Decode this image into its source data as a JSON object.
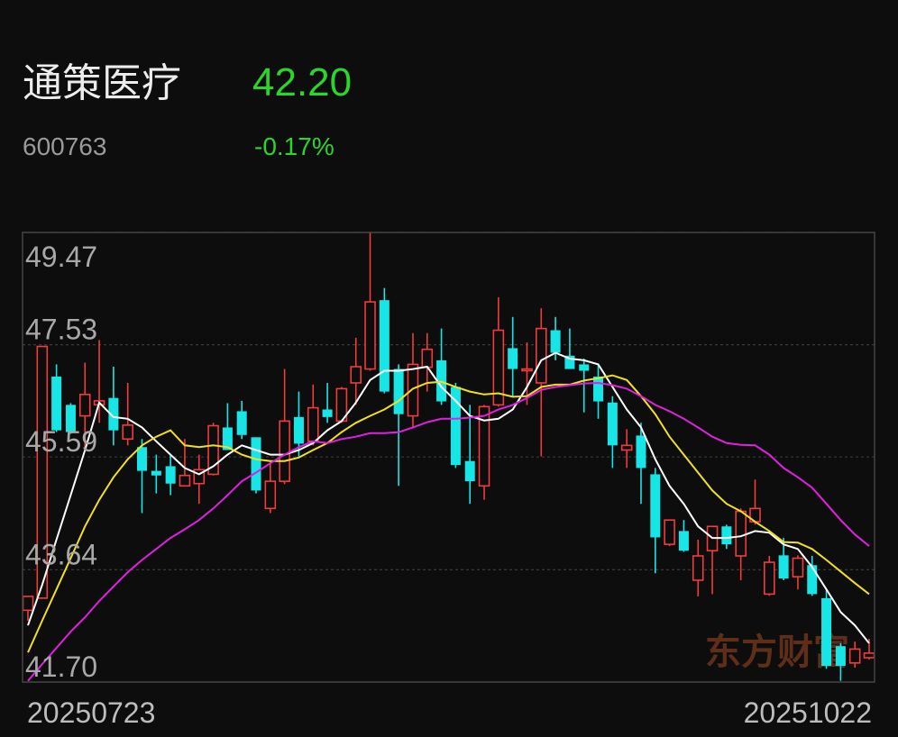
{
  "header": {
    "name": "通策医疗",
    "price": "42.20",
    "code": "600763",
    "change": "-0.17%"
  },
  "chart_data": {
    "type": "candlestick",
    "categories": [
      "20250723",
      null,
      null,
      null,
      null,
      null,
      null,
      null,
      null,
      null,
      null,
      null,
      null,
      null,
      null,
      null,
      null,
      null,
      null,
      null,
      null,
      null,
      null,
      null,
      null,
      null,
      null,
      null,
      null,
      null,
      null,
      null,
      null,
      null,
      null,
      null,
      null,
      null,
      null,
      null,
      null,
      null,
      null,
      null,
      null,
      null,
      null,
      null,
      null,
      null,
      null,
      null,
      null,
      null,
      null,
      null,
      null,
      null,
      null,
      "20251022"
    ],
    "open": [
      42.94,
      43.15,
      46.98,
      46.49,
      46.3,
      46.49,
      46.61,
      45.9,
      45.76,
      45.35,
      45.43,
      45.09,
      45.13,
      45.29,
      46.1,
      46.38,
      45.93,
      44.7,
      45.17,
      46.28,
      45.86,
      46.41,
      46.21,
      46.87,
      47.11,
      48.3,
      47.11,
      46.3,
      47.14,
      47.26,
      46.8,
      45.52,
      45.09,
      46.49,
      47.47,
      47.08,
      46.87,
      47.78,
      47.34,
      47.19,
      46.98,
      46.53,
      45.71,
      45.96,
      45.29,
      44.08,
      44.31,
      43.46,
      43.97,
      44.39,
      43.88,
      44.47,
      43.22,
      43.89,
      43.52,
      43.72,
      43.15,
      42.32,
      42.03,
      42.12
    ],
    "high": [
      43.18,
      47.5,
      47.19,
      46.52,
      47.22,
      47.61,
      47.15,
      46.87,
      45.9,
      45.63,
      45.63,
      45.9,
      45.63,
      46.18,
      46.52,
      46.56,
      45.93,
      45.52,
      47.11,
      46.72,
      46.84,
      46.87,
      46.8,
      47.65,
      49.47,
      48.51,
      47.19,
      47.73,
      47.73,
      47.81,
      46.87,
      46.49,
      46.49,
      48.35,
      48.01,
      47.57,
      48.16,
      48.01,
      47.81,
      47.29,
      47.19,
      46.64,
      46.07,
      46.18,
      45.4,
      44.5,
      44.5,
      44.16,
      44.39,
      44.42,
      44.7,
      45.2,
      43.88,
      44.19,
      43.89,
      43.88,
      43.3,
      42.37,
      42.4,
      42.45
    ],
    "low": [
      42.76,
      43.15,
      46.02,
      45.99,
      45.74,
      46.18,
      45.79,
      45.79,
      44.62,
      44.96,
      44.93,
      45.09,
      44.78,
      45.27,
      45.71,
      45.9,
      44.96,
      44.62,
      45.12,
      45.6,
      45.79,
      46.18,
      46.18,
      46.49,
      47.08,
      46.69,
      45.09,
      46.1,
      46.72,
      46.49,
      45.4,
      44.78,
      44.85,
      46.46,
      46.64,
      46.49,
      45.6,
      47.26,
      47.11,
      46.36,
      46.25,
      45.4,
      45.4,
      44.78,
      43.58,
      44.05,
      43.95,
      43.18,
      43.22,
      44.0,
      43.46,
      44.42,
      43.19,
      43.46,
      43.3,
      43.19,
      41.93,
      41.72,
      41.95,
      42.09
    ],
    "close": [
      43.18,
      47.5,
      46.05,
      46.02,
      46.67,
      46.56,
      46.05,
      46.14,
      45.35,
      45.27,
      45.13,
      45.27,
      45.37,
      46.13,
      45.71,
      45.97,
      45.01,
      45.17,
      46.21,
      45.82,
      46.44,
      46.28,
      46.77,
      47.15,
      48.27,
      46.72,
      46.33,
      47.19,
      47.45,
      46.55,
      45.45,
      45.17,
      46.46,
      47.78,
      47.11,
      47.11,
      47.81,
      47.39,
      47.11,
      47.08,
      46.55,
      45.79,
      45.79,
      45.4,
      44.2,
      44.5,
      43.97,
      43.88,
      44.39,
      44.08,
      44.65,
      44.7,
      43.77,
      43.49,
      43.84,
      43.22,
      41.98,
      41.98,
      42.27,
      42.2
    ],
    "up_color": "#f23b3b",
    "down_color": "#18e6e6",
    "series": [
      {
        "color": "#ffffff",
        "values": [
          42.68,
          43.38,
          44.16,
          44.93,
          45.71,
          46.53,
          46.28,
          46.25,
          46.1,
          45.86,
          45.63,
          45.4,
          45.29,
          45.43,
          45.63,
          45.79,
          45.71,
          45.63,
          45.63,
          45.71,
          45.83,
          46.05,
          46.21,
          46.53,
          46.92,
          47.08,
          47.08,
          47.11,
          47.15,
          46.8,
          46.56,
          46.3,
          46.22,
          46.25,
          46.41,
          46.8,
          47.26,
          47.39,
          47.29,
          47.26,
          47.19,
          46.8,
          46.41,
          46.1,
          45.55,
          45.09,
          44.78,
          44.39,
          44.19,
          44.19,
          44.22,
          44.31,
          44.28,
          44.08,
          44.0,
          43.69,
          43.3,
          42.91,
          42.68,
          42.37
        ]
      },
      {
        "color": "#f0e020",
        "values": [
          42.21,
          42.76,
          43.3,
          43.84,
          44.39,
          44.85,
          45.24,
          45.55,
          45.79,
          45.94,
          46.05,
          45.79,
          45.76,
          45.79,
          45.76,
          45.63,
          45.55,
          45.52,
          45.52,
          45.58,
          45.71,
          45.83,
          46.02,
          46.18,
          46.3,
          46.41,
          46.56,
          46.77,
          46.87,
          46.89,
          46.8,
          46.72,
          46.67,
          46.69,
          46.63,
          46.64,
          46.8,
          46.84,
          46.84,
          46.91,
          46.95,
          47.0,
          46.92,
          46.64,
          46.33,
          45.94,
          45.63,
          45.32,
          45.01,
          44.78,
          44.65,
          44.47,
          44.31,
          44.12,
          44.11,
          44.0,
          43.81,
          43.61,
          43.41,
          43.22
        ]
      },
      {
        "color": "#e020e0",
        "values": [
          41.72,
          42.01,
          42.29,
          42.57,
          42.82,
          43.1,
          43.35,
          43.6,
          43.81,
          44.0,
          44.19,
          44.34,
          44.5,
          44.7,
          44.93,
          45.17,
          45.32,
          45.48,
          45.63,
          45.76,
          45.86,
          45.83,
          45.9,
          45.94,
          46.0,
          46.0,
          46.02,
          46.1,
          46.19,
          46.25,
          46.25,
          46.27,
          46.3,
          46.41,
          46.49,
          46.61,
          46.75,
          46.8,
          46.83,
          46.86,
          46.87,
          46.83,
          46.77,
          46.64,
          46.49,
          46.38,
          46.25,
          46.1,
          45.94,
          45.83,
          45.8,
          45.79,
          45.63,
          45.4,
          45.24,
          45.06,
          44.78,
          44.5,
          44.25,
          44.05
        ]
      }
    ],
    "ylim": [
      41.7,
      49.47
    ],
    "yticks": [
      {
        "value": 41.7,
        "label": "41.70"
      },
      43.64,
      45.59,
      47.53,
      49.47
    ],
    "grid": true,
    "watermark": "东方财富"
  }
}
